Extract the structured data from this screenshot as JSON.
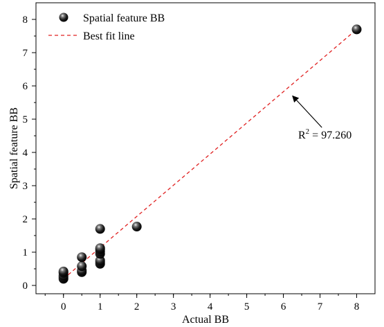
{
  "chart_data": {
    "type": "scatter",
    "title": "",
    "xlabel": "Actual BB",
    "ylabel": "Spatial feature BB",
    "x_ticks": [
      "0",
      "1",
      "2",
      "3",
      "4",
      "5",
      "6",
      "7",
      "8"
    ],
    "x_tick_values": [
      0,
      1,
      2,
      3,
      4,
      5,
      6,
      7,
      8
    ],
    "y_ticks": [
      "0",
      "1",
      "2",
      "3",
      "4",
      "5",
      "6",
      "7",
      "8"
    ],
    "y_tick_values": [
      0,
      1,
      2,
      3,
      4,
      5,
      6,
      7,
      8
    ],
    "xlim": [
      -0.75,
      8.5
    ],
    "ylim": [
      -0.25,
      8.5
    ],
    "grid": false,
    "legend_position": "top-left",
    "series": [
      {
        "name": "Spatial feature BB",
        "kind": "scatter",
        "color": "#111111",
        "points": [
          [
            0,
            0.2
          ],
          [
            0,
            0.25
          ],
          [
            0,
            0.3
          ],
          [
            0,
            0.38
          ],
          [
            0,
            0.42
          ],
          [
            0.5,
            0.4
          ],
          [
            0.5,
            0.45
          ],
          [
            0.5,
            0.58
          ],
          [
            0.5,
            0.85
          ],
          [
            1,
            0.65
          ],
          [
            1,
            0.7
          ],
          [
            1,
            0.75
          ],
          [
            1,
            0.95
          ],
          [
            1,
            1.02
          ],
          [
            1,
            1.08
          ],
          [
            1,
            1.12
          ],
          [
            1,
            1.7
          ],
          [
            2,
            1.77
          ],
          [
            8,
            7.7
          ]
        ]
      },
      {
        "name": "Best fit line",
        "kind": "line",
        "style": "dashed",
        "color": "#e02020",
        "points": [
          [
            0,
            0.2
          ],
          [
            8,
            7.7
          ]
        ]
      }
    ],
    "annotation": {
      "base": "R",
      "sup": "2",
      "rest": " = 97.260",
      "arrow_to": [
        6.25,
        5.7
      ],
      "arrow_from": [
        7.05,
        4.75
      ]
    }
  }
}
